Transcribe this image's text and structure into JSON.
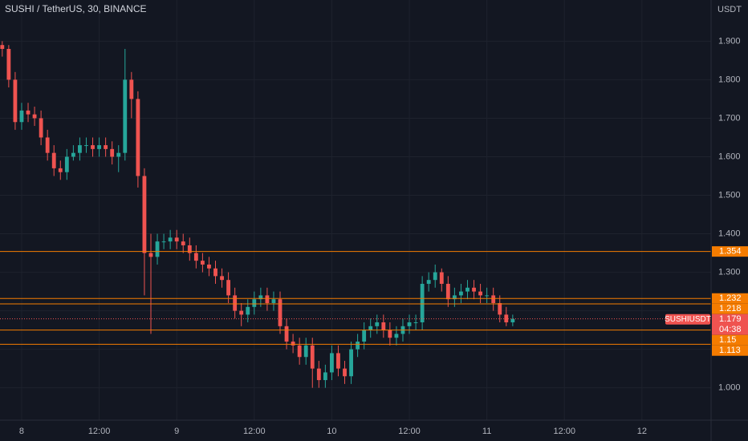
{
  "chart_data": {
    "type": "candlestick",
    "title": "SUSHI / TetherUS, 30, BINANCE",
    "y_unit": "USDT",
    "x": [
      -3,
      -2,
      -1,
      0,
      1,
      2,
      3,
      4,
      5,
      6,
      7,
      8,
      9,
      10,
      11,
      12,
      13,
      14,
      15,
      16,
      17,
      18,
      19,
      20,
      21,
      22,
      23,
      24,
      25,
      26,
      27,
      28,
      29,
      30,
      31,
      32,
      33,
      34,
      35,
      36,
      37,
      38,
      39,
      40,
      41,
      42,
      43,
      44,
      45,
      46,
      47,
      48,
      49,
      50,
      51,
      52,
      53,
      54,
      55,
      56,
      57,
      58,
      59,
      60,
      61,
      62,
      63,
      64,
      65,
      66,
      67,
      68,
      69,
      70,
      71,
      72,
      73,
      74,
      75,
      76
    ],
    "open": [
      1.89,
      1.88,
      1.8,
      1.69,
      1.72,
      1.71,
      1.7,
      1.65,
      1.61,
      1.57,
      1.56,
      1.6,
      1.61,
      1.63,
      1.63,
      1.62,
      1.63,
      1.62,
      1.6,
      1.61,
      1.8,
      1.75,
      1.55,
      1.35,
      1.34,
      1.38,
      1.38,
      1.39,
      1.38,
      1.37,
      1.35,
      1.33,
      1.32,
      1.31,
      1.29,
      1.28,
      1.24,
      1.2,
      1.19,
      1.21,
      1.23,
      1.24,
      1.22,
      1.23,
      1.16,
      1.12,
      1.11,
      1.08,
      1.11,
      1.05,
      1.02,
      1.04,
      1.09,
      1.05,
      1.03,
      1.1,
      1.12,
      1.15,
      1.16,
      1.17,
      1.15,
      1.13,
      1.14,
      1.16,
      1.17,
      1.17,
      1.27,
      1.28,
      1.3,
      1.27,
      1.23,
      1.24,
      1.25,
      1.26,
      1.25,
      1.24,
      1.24,
      1.22,
      1.19,
      1.17
    ],
    "high": [
      1.9,
      1.89,
      1.82,
      1.74,
      1.74,
      1.73,
      1.72,
      1.67,
      1.63,
      1.59,
      1.62,
      1.63,
      1.65,
      1.65,
      1.65,
      1.65,
      1.65,
      1.64,
      1.63,
      1.88,
      1.82,
      1.77,
      1.57,
      1.4,
      1.4,
      1.4,
      1.41,
      1.41,
      1.4,
      1.39,
      1.37,
      1.35,
      1.34,
      1.33,
      1.31,
      1.3,
      1.26,
      1.22,
      1.23,
      1.25,
      1.26,
      1.26,
      1.25,
      1.25,
      1.18,
      1.14,
      1.13,
      1.13,
      1.13,
      1.07,
      1.06,
      1.11,
      1.11,
      1.07,
      1.12,
      1.14,
      1.17,
      1.18,
      1.19,
      1.19,
      1.17,
      1.16,
      1.18,
      1.19,
      1.19,
      1.29,
      1.3,
      1.32,
      1.31,
      1.29,
      1.26,
      1.27,
      1.28,
      1.28,
      1.27,
      1.26,
      1.26,
      1.24,
      1.21,
      1.19
    ],
    "low": [
      1.86,
      1.78,
      1.67,
      1.67,
      1.69,
      1.68,
      1.63,
      1.59,
      1.55,
      1.54,
      1.54,
      1.59,
      1.59,
      1.61,
      1.6,
      1.6,
      1.6,
      1.58,
      1.56,
      1.59,
      1.7,
      1.52,
      1.24,
      1.14,
      1.32,
      1.36,
      1.36,
      1.36,
      1.35,
      1.33,
      1.31,
      1.3,
      1.29,
      1.27,
      1.26,
      1.22,
      1.18,
      1.16,
      1.17,
      1.19,
      1.21,
      1.2,
      1.2,
      1.14,
      1.1,
      1.09,
      1.06,
      1.06,
      1.0,
      1.0,
      1.0,
      1.02,
      1.03,
      1.01,
      1.01,
      1.08,
      1.1,
      1.13,
      1.14,
      1.13,
      1.11,
      1.11,
      1.12,
      1.14,
      1.15,
      1.15,
      1.25,
      1.26,
      1.25,
      1.21,
      1.21,
      1.22,
      1.23,
      1.23,
      1.22,
      1.22,
      1.2,
      1.17,
      1.16,
      1.16
    ],
    "close": [
      1.88,
      1.8,
      1.69,
      1.72,
      1.71,
      1.7,
      1.65,
      1.61,
      1.57,
      1.56,
      1.6,
      1.61,
      1.63,
      1.63,
      1.62,
      1.63,
      1.62,
      1.6,
      1.61,
      1.8,
      1.75,
      1.55,
      1.35,
      1.34,
      1.38,
      1.38,
      1.39,
      1.38,
      1.37,
      1.35,
      1.33,
      1.32,
      1.31,
      1.29,
      1.28,
      1.24,
      1.2,
      1.19,
      1.21,
      1.23,
      1.24,
      1.22,
      1.23,
      1.16,
      1.12,
      1.11,
      1.08,
      1.11,
      1.05,
      1.02,
      1.04,
      1.09,
      1.05,
      1.03,
      1.1,
      1.12,
      1.15,
      1.16,
      1.17,
      1.15,
      1.13,
      1.14,
      1.16,
      1.17,
      1.17,
      1.27,
      1.28,
      1.3,
      1.27,
      1.23,
      1.24,
      1.25,
      1.26,
      1.25,
      1.24,
      1.24,
      1.22,
      1.19,
      1.17,
      1.179
    ],
    "up_color": "#26a69a",
    "down_color": "#ef5350",
    "xlim": [
      -3.35,
      106.7
    ],
    "xticks": [
      {
        "value": 0,
        "label": "8"
      },
      {
        "value": 12,
        "label": "12:00"
      },
      {
        "value": 24,
        "label": "9"
      },
      {
        "value": 36,
        "label": "12:00"
      },
      {
        "value": 48,
        "label": "10"
      },
      {
        "value": 60,
        "label": "12:00"
      },
      {
        "value": 72,
        "label": "11"
      },
      {
        "value": 84,
        "label": "12:00"
      },
      {
        "value": 96,
        "label": "12"
      }
    ],
    "ylim": [
      0.916,
      2.007
    ],
    "yticks": [
      {
        "value": 1.0,
        "label": "1.000"
      },
      {
        "value": 1.1,
        "label": "1.100"
      },
      {
        "value": 1.2,
        "label": "1.200"
      },
      {
        "value": 1.3,
        "label": "1.300"
      },
      {
        "value": 1.4,
        "label": "1.400"
      },
      {
        "value": 1.5,
        "label": "1.500"
      },
      {
        "value": 1.6,
        "label": "1.600"
      },
      {
        "value": 1.7,
        "label": "1.700"
      },
      {
        "value": 1.8,
        "label": "1.800"
      },
      {
        "value": 1.9,
        "label": "1.900"
      }
    ],
    "grid": true,
    "levels": [
      1.354,
      1.232,
      1.218,
      1.15,
      1.113
    ],
    "level_color": "#f57c00",
    "symbol": "SUSHIUSDT",
    "last_price": 1.179,
    "countdown": "04:38"
  }
}
